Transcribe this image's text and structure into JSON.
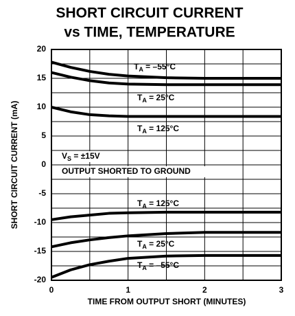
{
  "chart_data": {
    "type": "line",
    "title": "SHORT CIRCUIT CURRENT",
    "subtitle": "vs TIME, TEMPERATURE",
    "x_label": "TIME FROM OUTPUT SHORT (MINUTES)",
    "y_label": "SHORT CIRCUIT CURRENT (mA)",
    "x": [
      0,
      0.25,
      0.5,
      0.75,
      1,
      1.5,
      2,
      2.5,
      3
    ],
    "series": [
      {
        "name": "T",
        "name_sub": "A",
        "name_rest": " = –55°C",
        "color": "#000000",
        "values": [
          17.8,
          16.9,
          16.2,
          15.7,
          15.4,
          15.1,
          15,
          15,
          15
        ]
      },
      {
        "name": "T",
        "name_sub": "A",
        "name_rest": " = 25°C",
        "color": "#000000",
        "values": [
          16.0,
          15.2,
          14.6,
          14.2,
          14.0,
          13.9,
          13.9,
          13.9,
          13.9
        ]
      },
      {
        "name": "T",
        "name_sub": "A",
        "name_rest": " = 125°C",
        "color": "#000000",
        "values": [
          10.0,
          9.2,
          8.7,
          8.5,
          8.4,
          8.4,
          8.4,
          8.4,
          8.4
        ]
      },
      {
        "name": "T",
        "name_sub": "A",
        "name_rest": " = 125°C",
        "color": "#000000",
        "values": [
          -9.5,
          -9.0,
          -8.7,
          -8.4,
          -8.3,
          -8.2,
          -8.2,
          -8.2,
          -8.2
        ]
      },
      {
        "name": "T",
        "name_sub": "A",
        "name_rest": " = 25°C",
        "color": "#000000",
        "values": [
          -14.2,
          -13.5,
          -13.0,
          -12.6,
          -12.3,
          -11.9,
          -11.7,
          -11.7,
          -11.7
        ]
      },
      {
        "name": "T",
        "name_sub": "A",
        "name_rest": " = –55°C",
        "color": "#000000",
        "values": [
          -19.5,
          -18.2,
          -17.3,
          -16.7,
          -16.2,
          -15.8,
          -15.7,
          -15.7,
          -15.7
        ]
      }
    ],
    "annotations": [
      {
        "text": "V",
        "sub": "S",
        "rest": " = ±15V"
      },
      {
        "text": "OUTPUT SHORTED TO GROUND"
      }
    ],
    "xlim": [
      0,
      3
    ],
    "xticks": [
      0,
      1,
      2,
      3
    ],
    "xminor": [
      0.5,
      1.5,
      2.5
    ],
    "ylim": [
      -20,
      20
    ],
    "yticks": [
      -20,
      -15,
      -10,
      -5,
      0,
      5,
      10,
      15,
      20
    ],
    "yminor": [
      -17.5,
      -12.5,
      -7.5,
      -2.5,
      2.5,
      7.5,
      12.5,
      17.5
    ],
    "grid": true
  }
}
